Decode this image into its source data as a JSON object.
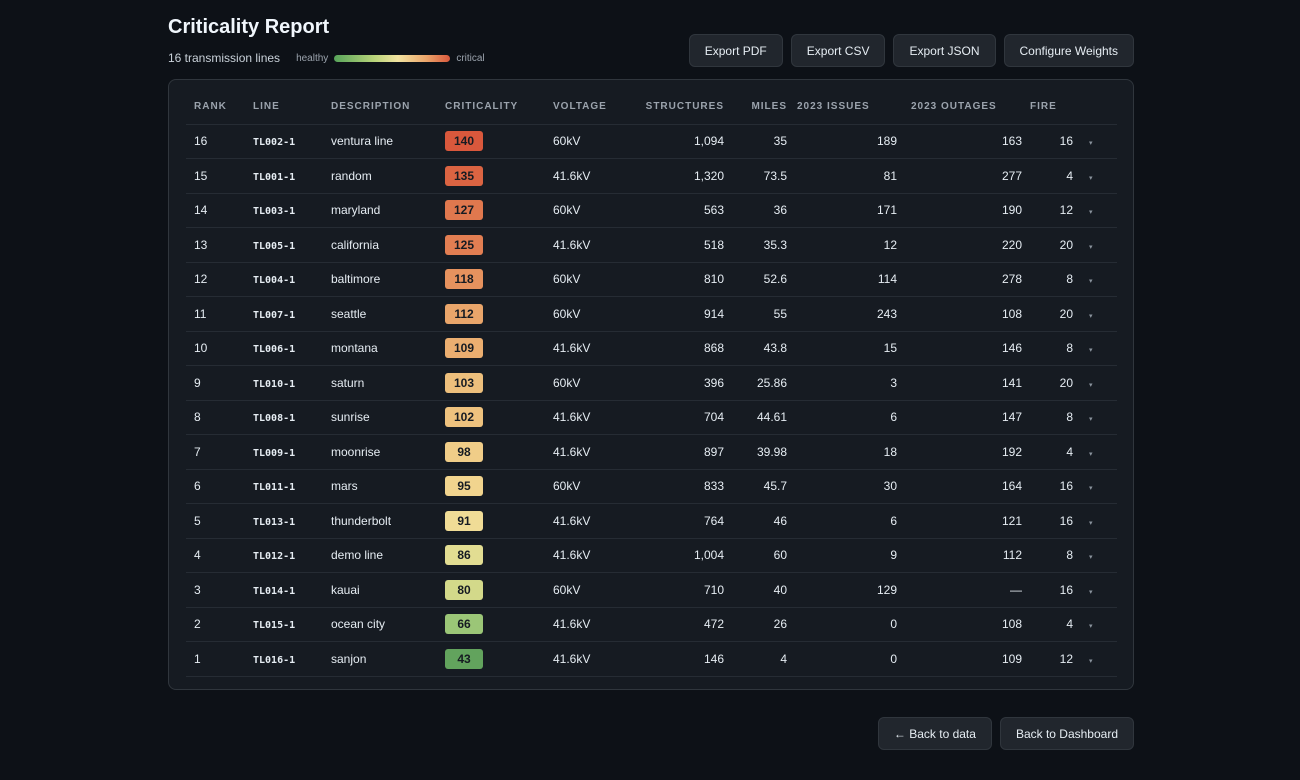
{
  "page": {
    "title": "Criticality Report",
    "count_text": "16 transmission lines",
    "legend_low": "healthy",
    "legend_high": "critical"
  },
  "actions": {
    "export_pdf": "Export PDF",
    "export_csv": "Export CSV",
    "export_json": "Export JSON",
    "configure_weights": "Configure Weights"
  },
  "table": {
    "headers": {
      "rank": "RANK",
      "line": "LINE",
      "description": "DESCRIPTION",
      "criticality": "CRITICALITY",
      "voltage": "VOLTAGE",
      "structures": "STRUCTURES",
      "miles": "MILES",
      "issues": "2023 ISSUES",
      "outages": "2023 OUTAGES",
      "fire": "FIRE"
    },
    "expand_icon": "▾",
    "rows": [
      {
        "rank": "16",
        "line": "TL002-1",
        "description": "ventura line",
        "criticality": "140",
        "color": "#d9583c",
        "voltage": "60kV",
        "structures": "1,094",
        "miles": "35",
        "issues": "189",
        "outages": "163",
        "fire": "16"
      },
      {
        "rank": "15",
        "line": "TL001-1",
        "description": "random",
        "criticality": "135",
        "color": "#db6442",
        "voltage": "41.6kV",
        "structures": "1,320",
        "miles": "73.5",
        "issues": "81",
        "outages": "277",
        "fire": "4"
      },
      {
        "rank": "14",
        "line": "TL003-1",
        "description": "maryland",
        "criticality": "127",
        "color": "#e0784e",
        "voltage": "60kV",
        "structures": "563",
        "miles": "36",
        "issues": "171",
        "outages": "190",
        "fire": "12"
      },
      {
        "rank": "13",
        "line": "TL005-1",
        "description": "california",
        "criticality": "125",
        "color": "#e27e52",
        "voltage": "41.6kV",
        "structures": "518",
        "miles": "35.3",
        "issues": "12",
        "outages": "220",
        "fire": "20"
      },
      {
        "rank": "12",
        "line": "TL004-1",
        "description": "baltimore",
        "criticality": "118",
        "color": "#e6925e",
        "voltage": "60kV",
        "structures": "810",
        "miles": "52.6",
        "issues": "114",
        "outages": "278",
        "fire": "8"
      },
      {
        "rank": "11",
        "line": "TL007-1",
        "description": "seattle",
        "criticality": "112",
        "color": "#e9a56a",
        "voltage": "60kV",
        "structures": "914",
        "miles": "55",
        "issues": "243",
        "outages": "108",
        "fire": "20"
      },
      {
        "rank": "10",
        "line": "TL006-1",
        "description": "montana",
        "criticality": "109",
        "color": "#ebae70",
        "voltage": "41.6kV",
        "structures": "868",
        "miles": "43.8",
        "issues": "15",
        "outages": "146",
        "fire": "8"
      },
      {
        "rank": "9",
        "line": "TL010-1",
        "description": "saturn",
        "criticality": "103",
        "color": "#edbf7c",
        "voltage": "60kV",
        "structures": "396",
        "miles": "25.86",
        "issues": "3",
        "outages": "141",
        "fire": "20"
      },
      {
        "rank": "8",
        "line": "TL008-1",
        "description": "sunrise",
        "criticality": "102",
        "color": "#eec27e",
        "voltage": "41.6kV",
        "structures": "704",
        "miles": "44.61",
        "issues": "6",
        "outages": "147",
        "fire": "8"
      },
      {
        "rank": "7",
        "line": "TL009-1",
        "description": "moonrise",
        "criticality": "98",
        "color": "#f0cd88",
        "voltage": "41.6kV",
        "structures": "897",
        "miles": "39.98",
        "issues": "18",
        "outages": "192",
        "fire": "4"
      },
      {
        "rank": "6",
        "line": "TL011-1",
        "description": "mars",
        "criticality": "95",
        "color": "#f1d48e",
        "voltage": "60kV",
        "structures": "833",
        "miles": "45.7",
        "issues": "30",
        "outages": "164",
        "fire": "16"
      },
      {
        "rank": "5",
        "line": "TL013-1",
        "description": "thunderbolt",
        "criticality": "91",
        "color": "#f0dc96",
        "voltage": "41.6kV",
        "structures": "764",
        "miles": "46",
        "issues": "6",
        "outages": "121",
        "fire": "16"
      },
      {
        "rank": "4",
        "line": "TL012-1",
        "description": "demo line",
        "criticality": "86",
        "color": "#e2dd92",
        "voltage": "41.6kV",
        "structures": "1,004",
        "miles": "60",
        "issues": "9",
        "outages": "112",
        "fire": "8"
      },
      {
        "rank": "3",
        "line": "TL014-1",
        "description": "kauai",
        "criticality": "80",
        "color": "#d3d98a",
        "voltage": "60kV",
        "structures": "710",
        "miles": "40",
        "issues": "129",
        "outages": "—",
        "fire": "16"
      },
      {
        "rank": "2",
        "line": "TL015-1",
        "description": "ocean city",
        "criticality": "66",
        "color": "#9bc677",
        "voltage": "41.6kV",
        "structures": "472",
        "miles": "26",
        "issues": "0",
        "outages": "108",
        "fire": "4"
      },
      {
        "rank": "1",
        "line": "TL016-1",
        "description": "sanjon",
        "criticality": "43",
        "color": "#62a35d",
        "voltage": "41.6kV",
        "structures": "146",
        "miles": "4",
        "issues": "0",
        "outages": "109",
        "fire": "12"
      }
    ]
  },
  "footer": {
    "back_to_data": "← Back to data",
    "back_to_dashboard": "Back to Dashboard"
  }
}
